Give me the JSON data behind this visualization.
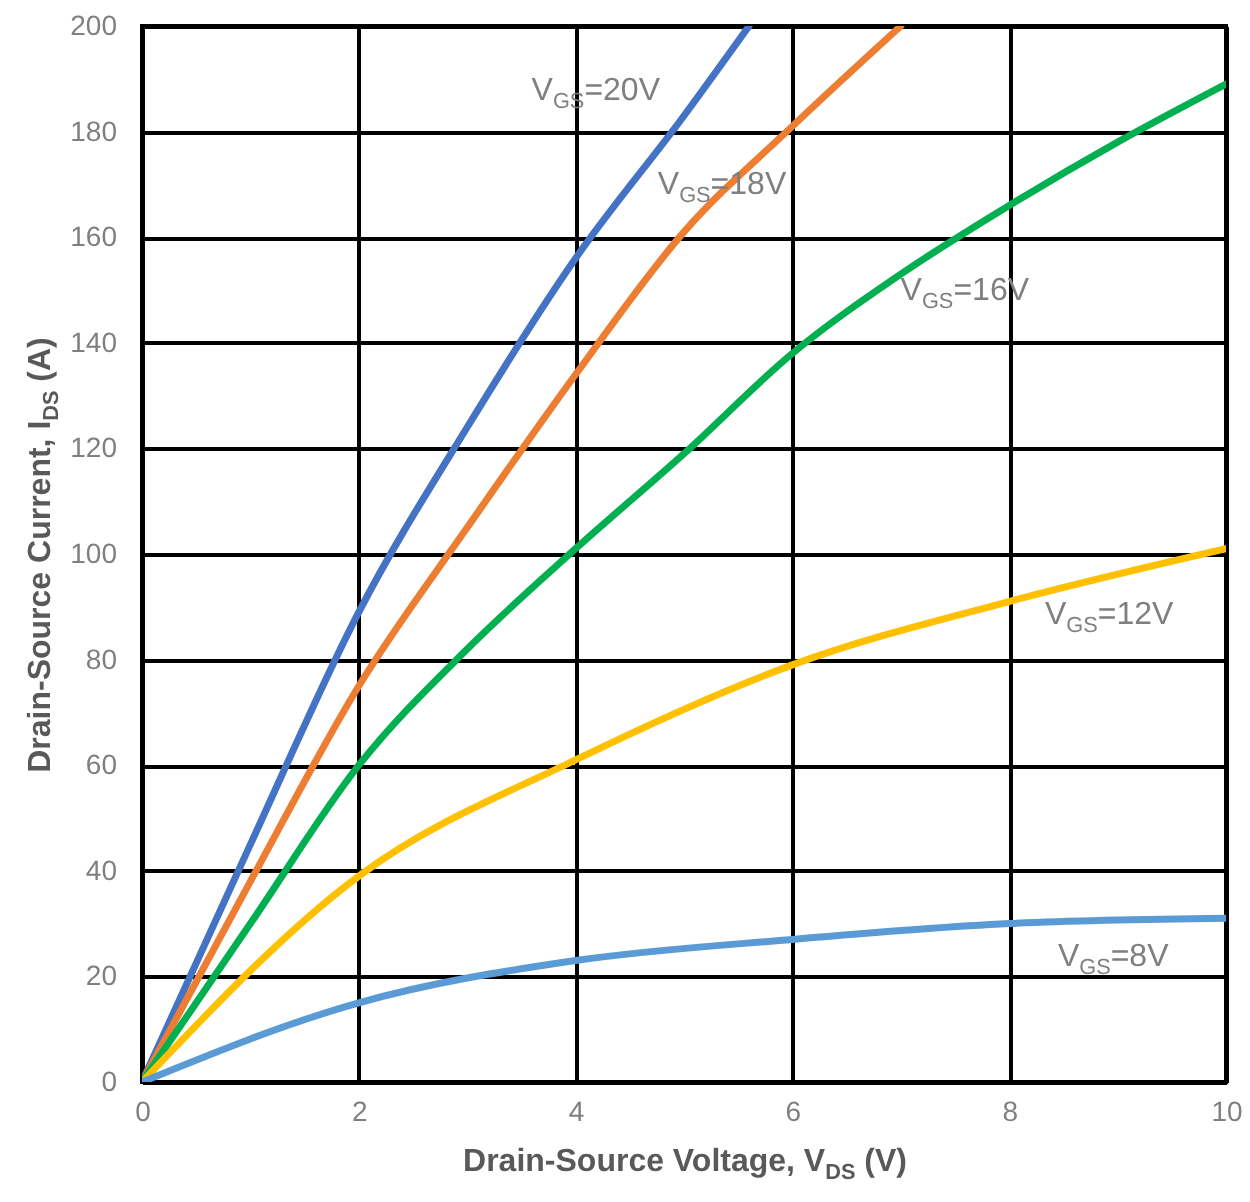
{
  "chart_data": {
    "type": "line",
    "xlabel": "Drain-Source Voltage, V$_{DS}$ (V)",
    "ylabel": "Drain-Source Current, I$_{DS}$ (A)",
    "xlim": [
      0,
      10
    ],
    "xticks": [
      0,
      2,
      4,
      6,
      8,
      10
    ],
    "ylim": [
      0,
      200
    ],
    "yticks": [
      0,
      20,
      40,
      60,
      80,
      100,
      120,
      140,
      160,
      180,
      200
    ],
    "grid": true,
    "line_style": "solid",
    "series": [
      {
        "name": "V$_{GS}$=20V",
        "color": "#4472c4",
        "x": [
          0,
          1,
          2,
          3,
          4,
          5,
          5.6
        ],
        "values": [
          0,
          45,
          89,
          124,
          156,
          183,
          200
        ]
      },
      {
        "name": "V$_{GS}$=18V",
        "color": "#ed7d31",
        "x": [
          0,
          1,
          2,
          3,
          4,
          5,
          6,
          7
        ],
        "values": [
          0,
          38,
          75,
          105,
          134,
          161,
          181,
          200
        ]
      },
      {
        "name": "V$_{GS}$=16V",
        "color": "#00b050",
        "x": [
          0,
          1,
          2,
          3,
          4,
          5,
          6,
          7,
          8,
          9,
          10
        ],
        "values": [
          0,
          30,
          60,
          82,
          101,
          119,
          138,
          153,
          166,
          178,
          189
        ]
      },
      {
        "name": "V$_{GS}$=12V",
        "color": "#ffc000",
        "x": [
          0,
          2,
          4,
          6,
          8,
          10
        ],
        "values": [
          0,
          39,
          61,
          79,
          91,
          101
        ]
      },
      {
        "name": "V$_{GS}$=8V",
        "color": "#5b9bd5",
        "x": [
          0,
          2,
          4,
          6,
          8,
          10
        ],
        "values": [
          0,
          15,
          23,
          27,
          30,
          31
        ]
      }
    ]
  }
}
